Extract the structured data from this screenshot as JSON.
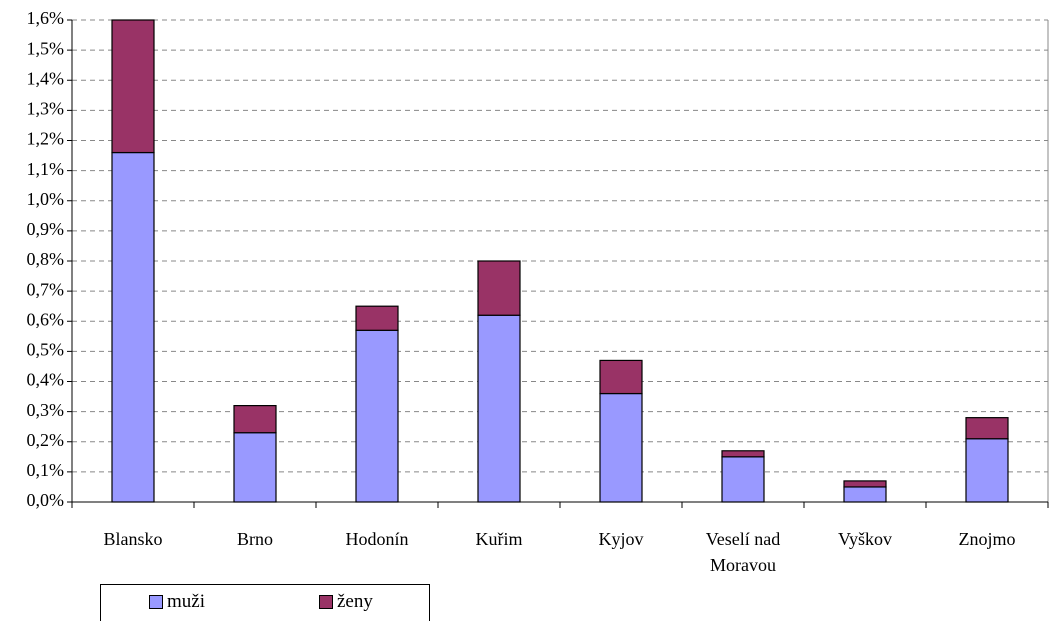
{
  "chart_data": {
    "type": "stacked_bar",
    "categories": [
      "Blansko",
      "Brno",
      "Hodonín",
      "Kuřim",
      "Kyjov",
      "Veselí nad Moravou",
      "Vyškov",
      "Znojmo"
    ],
    "series": [
      {
        "name": "muži",
        "color": "#9999ff",
        "values": [
          1.16,
          0.23,
          0.57,
          0.62,
          0.36,
          0.15,
          0.05,
          0.21
        ]
      },
      {
        "name": "ženy",
        "color": "#993366",
        "values": [
          0.44,
          0.09,
          0.08,
          0.18,
          0.11,
          0.02,
          0.02,
          0.07
        ]
      }
    ],
    "ylim": [
      0,
      1.6
    ],
    "yticks": [
      {
        "value": 0,
        "label": "0,0%"
      },
      {
        "value": 0.1,
        "label": "0,1%"
      },
      {
        "value": 0.2,
        "label": "0,2%"
      },
      {
        "value": 0.3,
        "label": "0,3%"
      },
      {
        "value": 0.4,
        "label": "0,4%"
      },
      {
        "value": 0.5,
        "label": "0,5%"
      },
      {
        "value": 0.6,
        "label": "0,6%"
      },
      {
        "value": 0.7,
        "label": "0,7%"
      },
      {
        "value": 0.8,
        "label": "0,8%"
      },
      {
        "value": 0.9,
        "label": "0,9%"
      },
      {
        "value": 1.0,
        "label": "1,0%"
      },
      {
        "value": 1.1,
        "label": "1,1%"
      },
      {
        "value": 1.2,
        "label": "1,2%"
      },
      {
        "value": 1.3,
        "label": "1,3%"
      },
      {
        "value": 1.4,
        "label": "1,4%"
      },
      {
        "value": 1.5,
        "label": "1,5%"
      },
      {
        "value": 1.6,
        "label": "1,6%"
      }
    ],
    "grid": true,
    "legend": "bottom"
  }
}
